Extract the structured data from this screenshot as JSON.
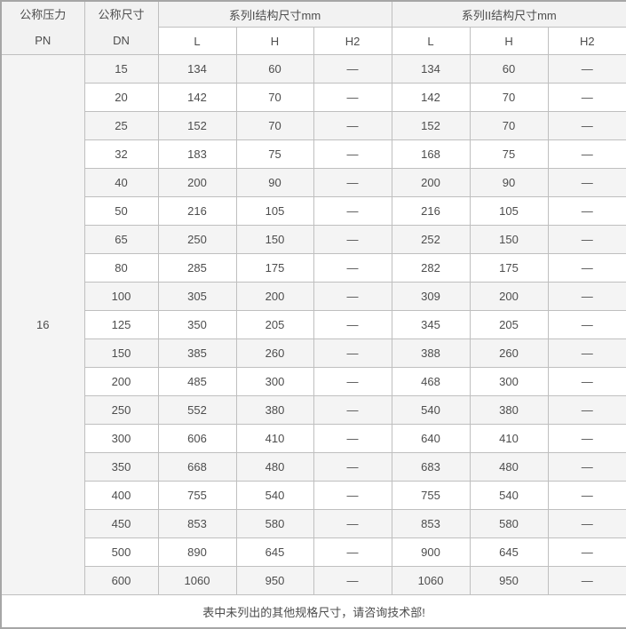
{
  "table": {
    "header": {
      "pressure_col": {
        "title": "公称压力",
        "code": "PN"
      },
      "size_col": {
        "title": "公称尺寸",
        "code": "DN"
      },
      "series1_title": "系列I结构尺寸mm",
      "series2_title": "系列II结构尺寸mm",
      "sub_columns": [
        "L",
        "H",
        "H2"
      ]
    },
    "pn_value": "16",
    "rows": [
      {
        "dn": "15",
        "s1": [
          "134",
          "60",
          "—"
        ],
        "s2": [
          "134",
          "60",
          "—"
        ]
      },
      {
        "dn": "20",
        "s1": [
          "142",
          "70",
          "—"
        ],
        "s2": [
          "142",
          "70",
          "—"
        ]
      },
      {
        "dn": "25",
        "s1": [
          "152",
          "70",
          "—"
        ],
        "s2": [
          "152",
          "70",
          "—"
        ]
      },
      {
        "dn": "32",
        "s1": [
          "183",
          "75",
          "—"
        ],
        "s2": [
          "168",
          "75",
          "—"
        ]
      },
      {
        "dn": "40",
        "s1": [
          "200",
          "90",
          "—"
        ],
        "s2": [
          "200",
          "90",
          "—"
        ]
      },
      {
        "dn": "50",
        "s1": [
          "216",
          "105",
          "—"
        ],
        "s2": [
          "216",
          "105",
          "—"
        ]
      },
      {
        "dn": "65",
        "s1": [
          "250",
          "150",
          "—"
        ],
        "s2": [
          "252",
          "150",
          "—"
        ]
      },
      {
        "dn": "80",
        "s1": [
          "285",
          "175",
          "—"
        ],
        "s2": [
          "282",
          "175",
          "—"
        ]
      },
      {
        "dn": "100",
        "s1": [
          "305",
          "200",
          "—"
        ],
        "s2": [
          "309",
          "200",
          "—"
        ]
      },
      {
        "dn": "125",
        "s1": [
          "350",
          "205",
          "—"
        ],
        "s2": [
          "345",
          "205",
          "—"
        ]
      },
      {
        "dn": "150",
        "s1": [
          "385",
          "260",
          "—"
        ],
        "s2": [
          "388",
          "260",
          "—"
        ]
      },
      {
        "dn": "200",
        "s1": [
          "485",
          "300",
          "—"
        ],
        "s2": [
          "468",
          "300",
          "—"
        ]
      },
      {
        "dn": "250",
        "s1": [
          "552",
          "380",
          "—"
        ],
        "s2": [
          "540",
          "380",
          "—"
        ]
      },
      {
        "dn": "300",
        "s1": [
          "606",
          "410",
          "—"
        ],
        "s2": [
          "640",
          "410",
          "—"
        ]
      },
      {
        "dn": "350",
        "s1": [
          "668",
          "480",
          "—"
        ],
        "s2": [
          "683",
          "480",
          "—"
        ]
      },
      {
        "dn": "400",
        "s1": [
          "755",
          "540",
          "—"
        ],
        "s2": [
          "755",
          "540",
          "—"
        ]
      },
      {
        "dn": "450",
        "s1": [
          "853",
          "580",
          "—"
        ],
        "s2": [
          "853",
          "580",
          "—"
        ]
      },
      {
        "dn": "500",
        "s1": [
          "890",
          "645",
          "—"
        ],
        "s2": [
          "900",
          "645",
          "—"
        ]
      },
      {
        "dn": "600",
        "s1": [
          "1060",
          "950",
          "—"
        ],
        "s2": [
          "1060",
          "950",
          "—"
        ]
      }
    ],
    "footer_note": "表中未列出的其他规格尺寸，请咨询技术部!"
  },
  "colors": {
    "header_bg": "#f2f2f2",
    "stripe_bg": "#f4f4f4",
    "white_bg": "#ffffff",
    "border_outer": "#a6a6a6",
    "border_inner": "#bfbfbf",
    "text": "#4d4d4d"
  }
}
